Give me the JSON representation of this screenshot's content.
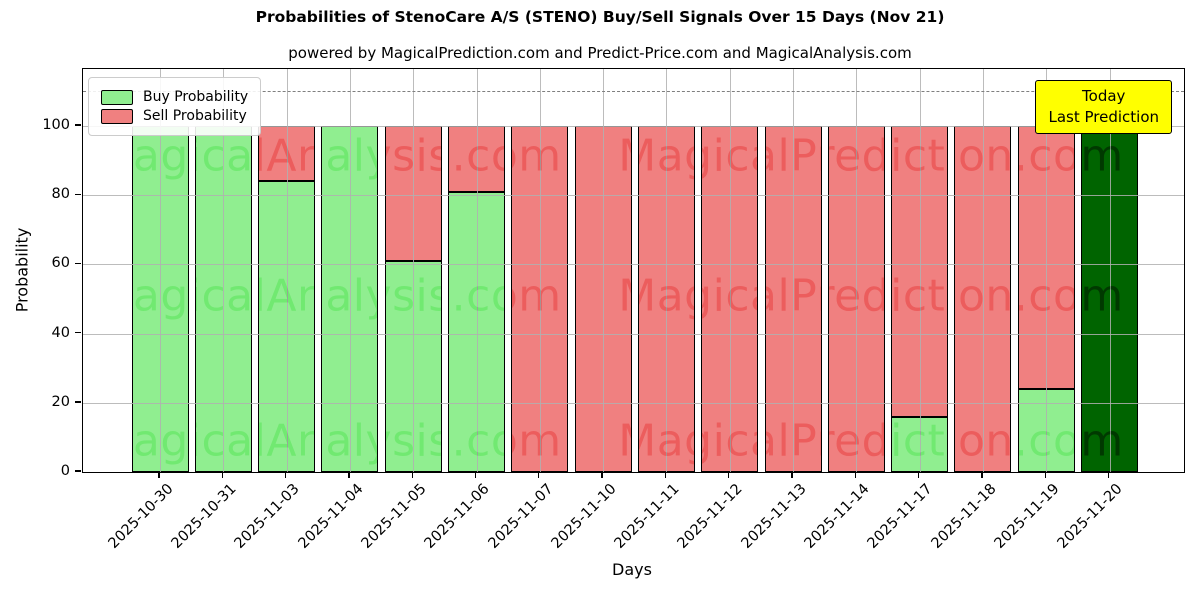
{
  "header": {
    "title": "Probabilities of StenoCare A/S (STENO) Buy/Sell Signals Over 15 Days (Nov 21)",
    "subtitle": "powered by MagicalPrediction.com and Predict-Price.com and MagicalAnalysis.com"
  },
  "legend": {
    "items": [
      {
        "label": "Buy Probability",
        "color": "#90EE90"
      },
      {
        "label": "Sell Probability",
        "color": "#F08080"
      }
    ]
  },
  "annotation": {
    "line1": "Today",
    "line2": "Last Prediction",
    "bg_color": "#FFFF00",
    "dashed_line_value": 110
  },
  "watermarks": {
    "left_text": "MagicalAnalysis.com",
    "right_text": "MagicalPrediction.com"
  },
  "chart_data": {
    "type": "bar",
    "stacked": true,
    "title": "Probabilities of StenoCare A/S (STENO) Buy/Sell Signals Over 15 Days (Nov 21)",
    "xlabel": "Days",
    "ylabel": "Probability",
    "yticks": [
      0,
      20,
      40,
      60,
      80,
      100
    ],
    "ylim": [
      0,
      116.5
    ],
    "grid": true,
    "legend_position": "upper-left",
    "categories": [
      "2025-10-30",
      "2025-10-31",
      "2025-11-03",
      "2025-11-04",
      "2025-11-05",
      "2025-11-06",
      "2025-11-07",
      "2025-11-10",
      "2025-11-11",
      "2025-11-12",
      "2025-11-13",
      "2025-11-14",
      "2025-11-17",
      "2025-11-18",
      "2025-11-19",
      "2025-11-20"
    ],
    "series": [
      {
        "name": "Buy Probability",
        "color": "#90EE90",
        "values": [
          100,
          100,
          84,
          100,
          61,
          81,
          0,
          0,
          0,
          0,
          0,
          0,
          16,
          0,
          24,
          100
        ]
      },
      {
        "name": "Sell Probability",
        "color": "#F08080",
        "values": [
          0,
          0,
          16,
          0,
          39,
          19,
          100,
          100,
          100,
          100,
          100,
          100,
          84,
          100,
          76,
          0
        ]
      }
    ],
    "today_index": 15,
    "today_color": "#006400"
  }
}
